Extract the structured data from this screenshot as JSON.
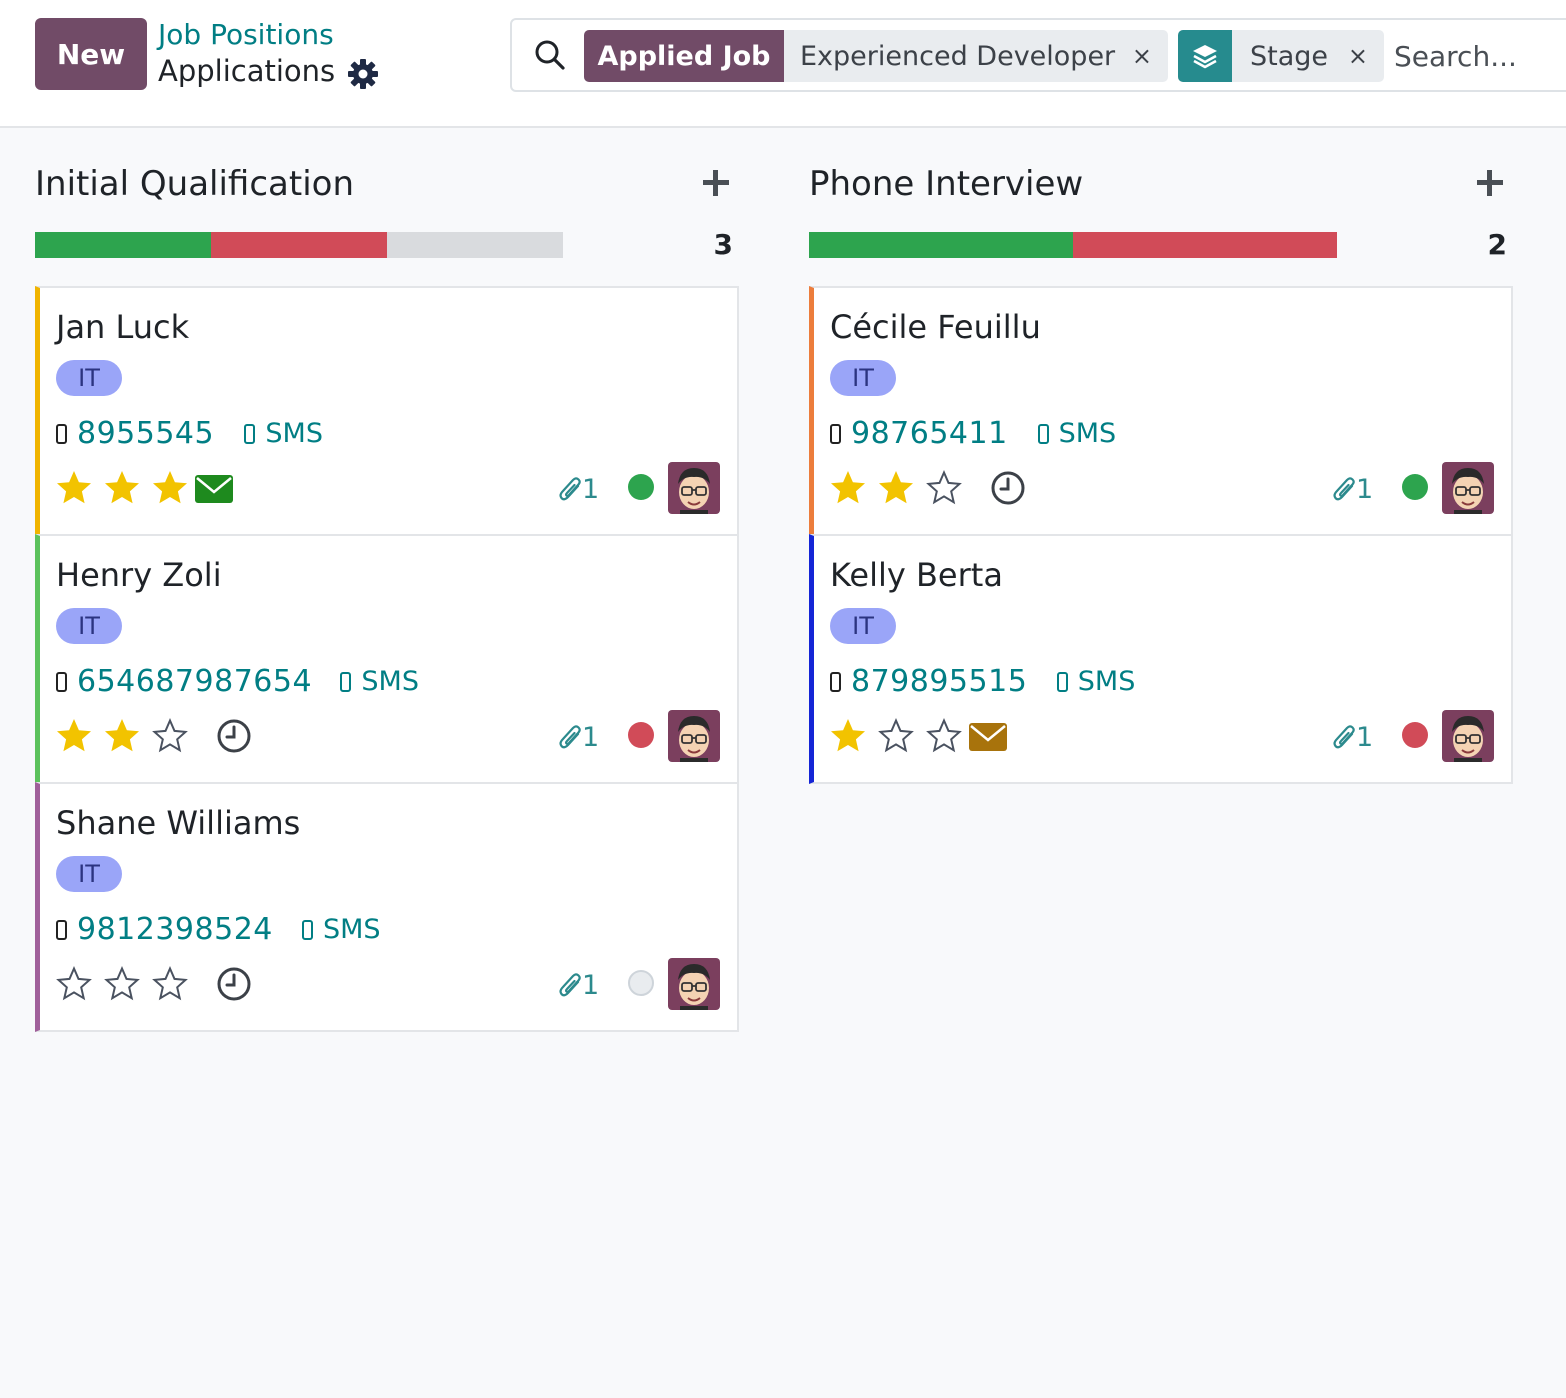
{
  "header": {
    "new_button": "New",
    "breadcrumb_parent": "Job Positions",
    "breadcrumb_current": "Applications"
  },
  "search": {
    "facet_job_label": "Applied Job",
    "facet_job_value": "Experienced Developer",
    "facet_group_value": "Stage",
    "remove_glyph": "×",
    "placeholder": "Search..."
  },
  "colors": {
    "brand": "#714b67",
    "teal": "#017e84",
    "progress_green": "#2da44e",
    "progress_red": "#d14b58",
    "progress_grey": "#d9dbde"
  },
  "columns": [
    {
      "title": "Initial Qualification",
      "count": "3",
      "progress": {
        "green": 1,
        "red": 1,
        "grey": 1
      },
      "cards": [
        {
          "name": "Jan Luck",
          "tag": "IT",
          "phone": "8955545",
          "sms": "SMS",
          "stars": 3,
          "activity": "envelope-icon",
          "activity_color": "#1e8a1e",
          "attachments": "1",
          "state": "green",
          "border": "#f0b400"
        },
        {
          "name": "Henry Zoli",
          "tag": "IT",
          "phone": "654687987654",
          "sms": "SMS",
          "stars": 2,
          "activity": "clock-icon",
          "attachments": "1",
          "state": "red",
          "border": "#5cc25c"
        },
        {
          "name": "Shane Williams",
          "tag": "IT",
          "phone": "9812398524",
          "sms": "SMS",
          "stars": 0,
          "activity": "clock-icon",
          "attachments": "1",
          "state": "grey",
          "border": "#a0609a"
        }
      ]
    },
    {
      "title": "Phone Interview",
      "count": "2",
      "progress": {
        "green": 1,
        "red": 1,
        "grey": 0
      },
      "cards": [
        {
          "name": "Cécile Feuillu",
          "tag": "IT",
          "phone": "98765411",
          "sms": "SMS",
          "stars": 2,
          "activity": "clock-icon",
          "attachments": "1",
          "state": "green",
          "border": "#ec7d3c"
        },
        {
          "name": "Kelly Berta",
          "tag": "IT",
          "phone": "879895515",
          "sms": "SMS",
          "stars": 1,
          "activity": "envelope-icon",
          "activity_color": "#a8730c",
          "attachments": "1",
          "state": "red",
          "border": "#1525d6"
        }
      ]
    }
  ]
}
